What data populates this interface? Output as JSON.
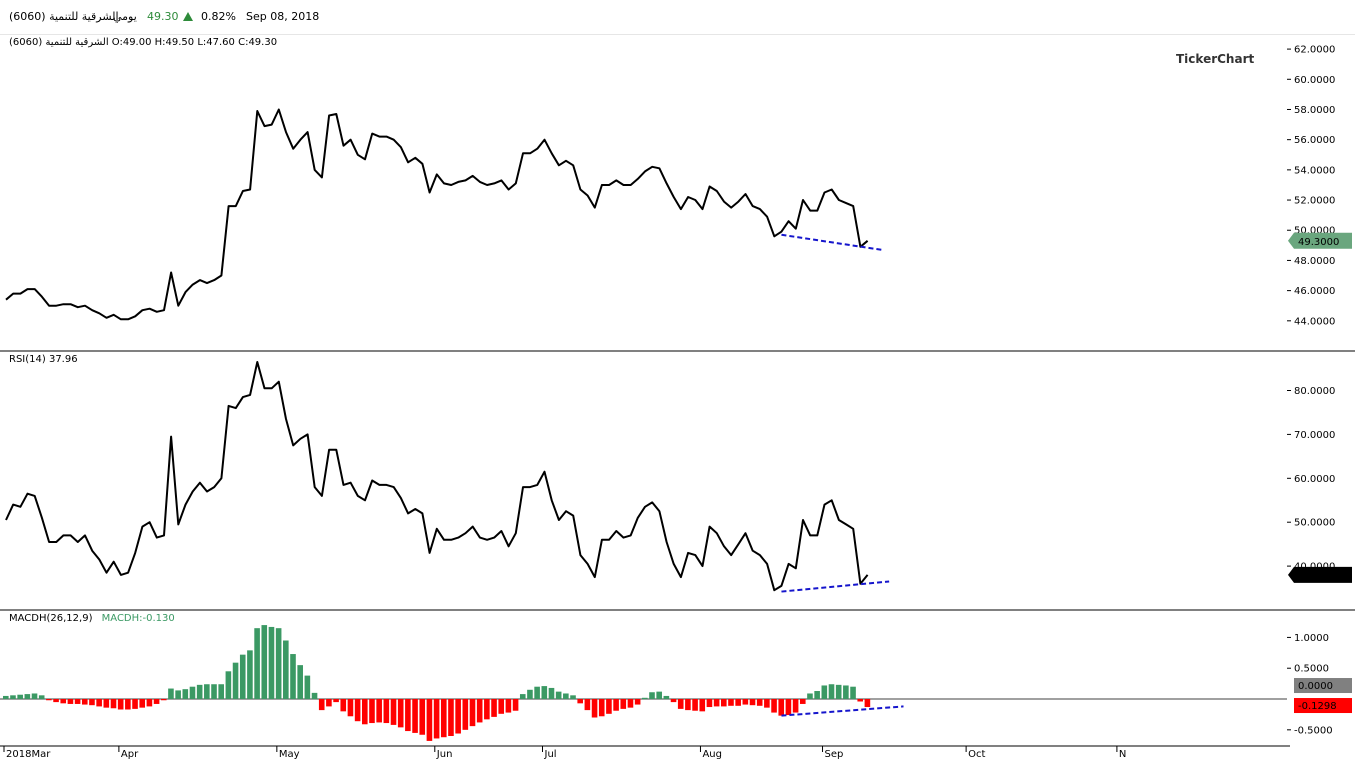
{
  "header": {
    "symbol_name": "الشرقية للتنمية (6060)",
    "period": "يومي",
    "last_price": "49.30",
    "change_pct": "0.82%",
    "date": "Sep 08, 2018"
  },
  "chart_data": [
    {
      "type": "line",
      "pane": "price",
      "label": "الشرقية للتنمية (6060)  O:49.00 H:49.50 L:47.60 C:49.30",
      "watermark": "TickerChart",
      "ylim": [
        42.0,
        63.0
      ],
      "yticks": [
        "62.0000",
        "60.0000",
        "58.0000",
        "56.0000",
        "54.0000",
        "52.0000",
        "50.0000",
        "48.0000",
        "46.0000",
        "44.0000"
      ],
      "last_value_label": "49.3000",
      "series": [
        {
          "values": [
            45.4,
            45.8,
            45.8,
            46.1,
            46.1,
            45.6,
            45.0,
            45.0,
            45.1,
            45.1,
            44.9,
            45.0,
            44.7,
            44.5,
            44.2,
            44.4,
            44.1,
            44.1,
            44.3,
            44.7,
            44.8,
            44.6,
            44.7,
            47.2,
            45.0,
            45.9,
            46.4,
            46.7,
            46.5,
            46.7,
            47.0,
            51.6,
            51.6,
            52.6,
            52.7,
            57.9,
            56.9,
            57.0,
            58.0,
            56.5,
            55.4,
            56.0,
            56.5,
            54.0,
            53.5,
            57.6,
            57.7,
            55.6,
            56.0,
            55.0,
            54.7,
            56.4,
            56.2,
            56.2,
            56.0,
            55.5,
            54.5,
            54.8,
            54.4,
            52.5,
            53.7,
            53.1,
            53.0,
            53.2,
            53.3,
            53.6,
            53.2,
            53.0,
            53.1,
            53.3,
            52.7,
            53.1,
            55.1,
            55.1,
            55.4,
            56.0,
            55.1,
            54.3,
            54.6,
            54.3,
            52.7,
            52.3,
            51.5,
            53.0,
            53.0,
            53.3,
            53.0,
            53.0,
            53.4,
            53.9,
            54.2,
            54.1,
            53.1,
            52.2,
            51.4,
            52.2,
            52.0,
            51.4,
            52.9,
            52.6,
            51.9,
            51.5,
            51.9,
            52.4,
            51.6,
            51.4,
            50.9,
            49.6,
            49.9,
            50.6,
            50.1,
            52.0,
            51.3,
            51.3,
            52.5,
            52.7,
            52.0,
            51.8,
            51.6,
            48.9,
            49.3
          ]
        }
      ],
      "annotations": [
        {
          "type": "trendline",
          "from": [
            108,
            49.7
          ],
          "to": [
            122,
            48.7
          ],
          "color": "#1515cc"
        }
      ]
    },
    {
      "type": "line",
      "pane": "rsi",
      "label": "RSI(14)  37.96",
      "ylim": [
        30.0,
        89.0
      ],
      "yticks": [
        "80.0000",
        "70.0000",
        "60.0000",
        "50.0000",
        "40.0000"
      ],
      "last_value_label": "37.9580",
      "series": [
        {
          "values": [
            50.5,
            54.0,
            53.5,
            56.5,
            56.0,
            51.0,
            45.5,
            45.5,
            47.0,
            47.0,
            45.5,
            47.0,
            43.5,
            41.5,
            38.5,
            41.0,
            38.0,
            38.5,
            43.0,
            49.0,
            50.0,
            46.5,
            47.0,
            69.5,
            49.5,
            54.0,
            57.0,
            59.0,
            57.0,
            58.0,
            60.0,
            76.5,
            76.0,
            78.5,
            79.0,
            86.5,
            80.5,
            80.5,
            82.0,
            73.5,
            67.5,
            69.0,
            70.0,
            58.0,
            56.0,
            66.5,
            66.5,
            58.5,
            59.0,
            56.0,
            55.0,
            59.5,
            58.5,
            58.5,
            58.0,
            55.5,
            52.0,
            53.0,
            52.0,
            43.0,
            48.5,
            46.0,
            46.0,
            46.5,
            47.5,
            49.0,
            46.5,
            46.0,
            46.5,
            48.0,
            44.5,
            47.5,
            58.0,
            58.0,
            58.5,
            61.5,
            55.0,
            50.5,
            52.5,
            51.5,
            42.5,
            40.5,
            37.5,
            46.0,
            46.0,
            48.0,
            46.5,
            47.0,
            51.0,
            53.5,
            54.5,
            52.5,
            45.5,
            40.5,
            37.5,
            43.0,
            42.5,
            40.0,
            49.0,
            47.5,
            44.5,
            42.5,
            45.0,
            47.5,
            43.5,
            42.5,
            40.5,
            34.5,
            35.5,
            40.5,
            39.5,
            50.5,
            47.0,
            47.0,
            54.0,
            55.0,
            50.5,
            49.5,
            48.5,
            36.0,
            38.0
          ]
        }
      ],
      "annotations": [
        {
          "type": "trendline",
          "from": [
            108,
            34.2
          ],
          "to": [
            123,
            36.5
          ],
          "color": "#1515cc"
        }
      ]
    },
    {
      "type": "bar",
      "pane": "macdh",
      "label": "MACDH(26,12,9)",
      "value_label": "MACDH:-0.130",
      "ylim": [
        -0.73,
        1.38
      ],
      "yticks": [
        "1.0000",
        "0.5000",
        "-0.5000"
      ],
      "zero_label": "0.0000",
      "last_value_label": "-0.1298",
      "colors": {
        "positive": "#3b9964",
        "negative": "#ff0000"
      },
      "values": [
        0.05,
        0.06,
        0.07,
        0.08,
        0.09,
        0.06,
        -0.02,
        -0.05,
        -0.07,
        -0.08,
        -0.08,
        -0.09,
        -0.1,
        -0.12,
        -0.14,
        -0.15,
        -0.17,
        -0.17,
        -0.16,
        -0.14,
        -0.12,
        -0.08,
        -0.02,
        0.17,
        0.14,
        0.16,
        0.2,
        0.23,
        0.24,
        0.24,
        0.24,
        0.45,
        0.59,
        0.72,
        0.79,
        1.15,
        1.2,
        1.17,
        1.15,
        0.95,
        0.73,
        0.55,
        0.38,
        0.1,
        -0.18,
        -0.12,
        -0.05,
        -0.2,
        -0.28,
        -0.36,
        -0.41,
        -0.39,
        -0.38,
        -0.39,
        -0.42,
        -0.46,
        -0.52,
        -0.55,
        -0.58,
        -0.68,
        -0.64,
        -0.62,
        -0.6,
        -0.56,
        -0.5,
        -0.44,
        -0.38,
        -0.33,
        -0.29,
        -0.24,
        -0.22,
        -0.19,
        0.08,
        0.15,
        0.2,
        0.21,
        0.18,
        0.12,
        0.09,
        0.06,
        -0.07,
        -0.18,
        -0.3,
        -0.28,
        -0.24,
        -0.19,
        -0.16,
        -0.14,
        -0.09,
        0.02,
        0.11,
        0.12,
        0.05,
        -0.05,
        -0.16,
        -0.18,
        -0.19,
        -0.2,
        -0.13,
        -0.12,
        -0.12,
        -0.11,
        -0.11,
        -0.09,
        -0.1,
        -0.11,
        -0.14,
        -0.22,
        -0.27,
        -0.26,
        -0.22,
        -0.08,
        0.09,
        0.13,
        0.22,
        0.24,
        0.23,
        0.22,
        0.2,
        -0.04,
        -0.13
      ]
    }
  ],
  "x_axis": {
    "labels": [
      {
        "text": "2018Mar",
        "index": 0
      },
      {
        "text": "Apr",
        "index": 16
      },
      {
        "text": "May",
        "index": 38
      },
      {
        "text": "Jun",
        "index": 60
      },
      {
        "text": "Jul",
        "index": 75
      },
      {
        "text": "Aug",
        "index": 97
      },
      {
        "text": "Sep",
        "index": 114
      },
      {
        "text": "Oct",
        "index": 134
      },
      {
        "text": "N",
        "index": 155
      }
    ]
  },
  "colors": {
    "line": "#000000",
    "trendline": "#1515cc",
    "price_label_bg": "#6aa67e",
    "rsi_label_bg": "#000000",
    "zero_label_bg": "#808080",
    "macd_label_bg": "#ff0000",
    "up_arrow": "#2e8b3a"
  }
}
